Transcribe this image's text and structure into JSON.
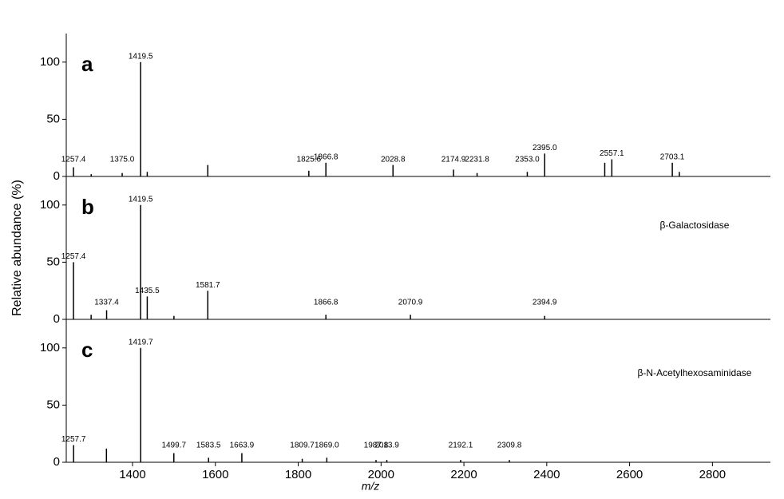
{
  "chart_data": [
    {
      "type": "stem",
      "panel": "a",
      "color": "#000000",
      "xlim": [
        1240,
        2940
      ],
      "ylim": [
        0,
        125
      ],
      "yticks": [
        0,
        50,
        100
      ],
      "x": [
        1257.4,
        1300.2,
        1375.0,
        1419.5,
        1435.5,
        1581.7,
        1825.6,
        1866.8,
        2028.8,
        2174.9,
        2231.8,
        2353.0,
        2395.0,
        2540.0,
        2557.1,
        2703.1,
        2720.1
      ],
      "x_labels": [
        "1257.4",
        null,
        "1375.0",
        "1419.5",
        null,
        null,
        "1825.6",
        "1866.8",
        "2028.8",
        "2174.9",
        "2231.8",
        "2353.0",
        "2395.0",
        null,
        "2557.1",
        "2703.1",
        null
      ],
      "values": [
        8,
        2,
        3,
        100,
        4,
        10,
        5,
        12,
        10,
        6,
        3,
        4,
        20,
        12,
        15,
        12,
        4
      ]
    },
    {
      "type": "stem",
      "panel": "b",
      "color": "#000000",
      "xlim": [
        1240,
        2940
      ],
      "ylim": [
        0,
        125
      ],
      "yticks": [
        0,
        50,
        100
      ],
      "ylabel": "Relative abundance (%)",
      "annotation": "β-Galactosidase",
      "x": [
        1257.4,
        1300.0,
        1337.4,
        1419.5,
        1435.5,
        1500.0,
        1581.7,
        1866.8,
        2070.9,
        2394.9
      ],
      "x_labels": [
        "1257.4",
        null,
        "1337.4",
        "1419.5",
        "1435.5",
        null,
        "1581.7",
        "1866.8",
        "2070.9",
        "2394.9"
      ],
      "values": [
        50,
        4,
        8,
        100,
        20,
        3,
        25,
        4,
        4,
        3
      ]
    },
    {
      "type": "stem",
      "panel": "c",
      "color": "#000000",
      "xlim": [
        1240,
        2940
      ],
      "ylim": [
        0,
        125
      ],
      "yticks": [
        0,
        50,
        100
      ],
      "xticks": [
        1400,
        1600,
        1800,
        2000,
        2200,
        2400,
        2600,
        2800
      ],
      "xlabel": "m/z",
      "annotation": "β-N-Acetylhexosaminidase",
      "x": [
        1257.7,
        1337.0,
        1419.7,
        1499.7,
        1583.5,
        1663.9,
        1809.7,
        1869.0,
        1987.8,
        2013.9,
        2192.1,
        2309.8
      ],
      "x_labels": [
        "1257.7",
        null,
        "1419.7",
        "1499.7",
        "1583.5",
        "1663.9",
        "1809.7",
        "1869.0",
        "1987.8",
        "2013.9",
        "2192.1",
        "2309.8"
      ],
      "values": [
        15,
        12,
        100,
        8,
        4,
        8,
        3,
        4,
        2,
        2,
        2,
        2
      ]
    }
  ]
}
